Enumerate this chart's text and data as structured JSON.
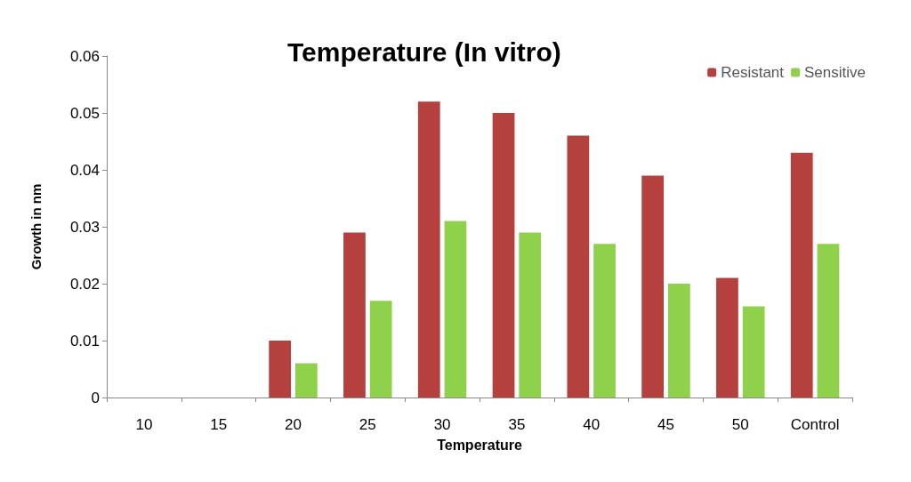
{
  "chart_data": {
    "type": "bar",
    "title": "Temperature (In vitro)",
    "xlabel": "Temperature",
    "ylabel": "Growth in nm",
    "categories": [
      "10",
      "15",
      "20",
      "25",
      "30",
      "35",
      "40",
      "45",
      "50",
      "Control"
    ],
    "series": [
      {
        "name": "Resistant",
        "color": "#b5413f",
        "values": [
          0,
          0,
          0.01,
          0.029,
          0.052,
          0.05,
          0.046,
          0.039,
          0.021,
          0.043
        ]
      },
      {
        "name": "Sensitive",
        "color": "#8fd14a",
        "values": [
          0,
          0,
          0.006,
          0.017,
          0.031,
          0.029,
          0.027,
          0.02,
          0.016,
          0.027
        ]
      }
    ],
    "ylim": [
      0,
      0.06
    ],
    "yticks": [
      0,
      0.01,
      0.02,
      0.03,
      0.04,
      0.05,
      0.06
    ],
    "grid": false,
    "legend": "top right"
  }
}
